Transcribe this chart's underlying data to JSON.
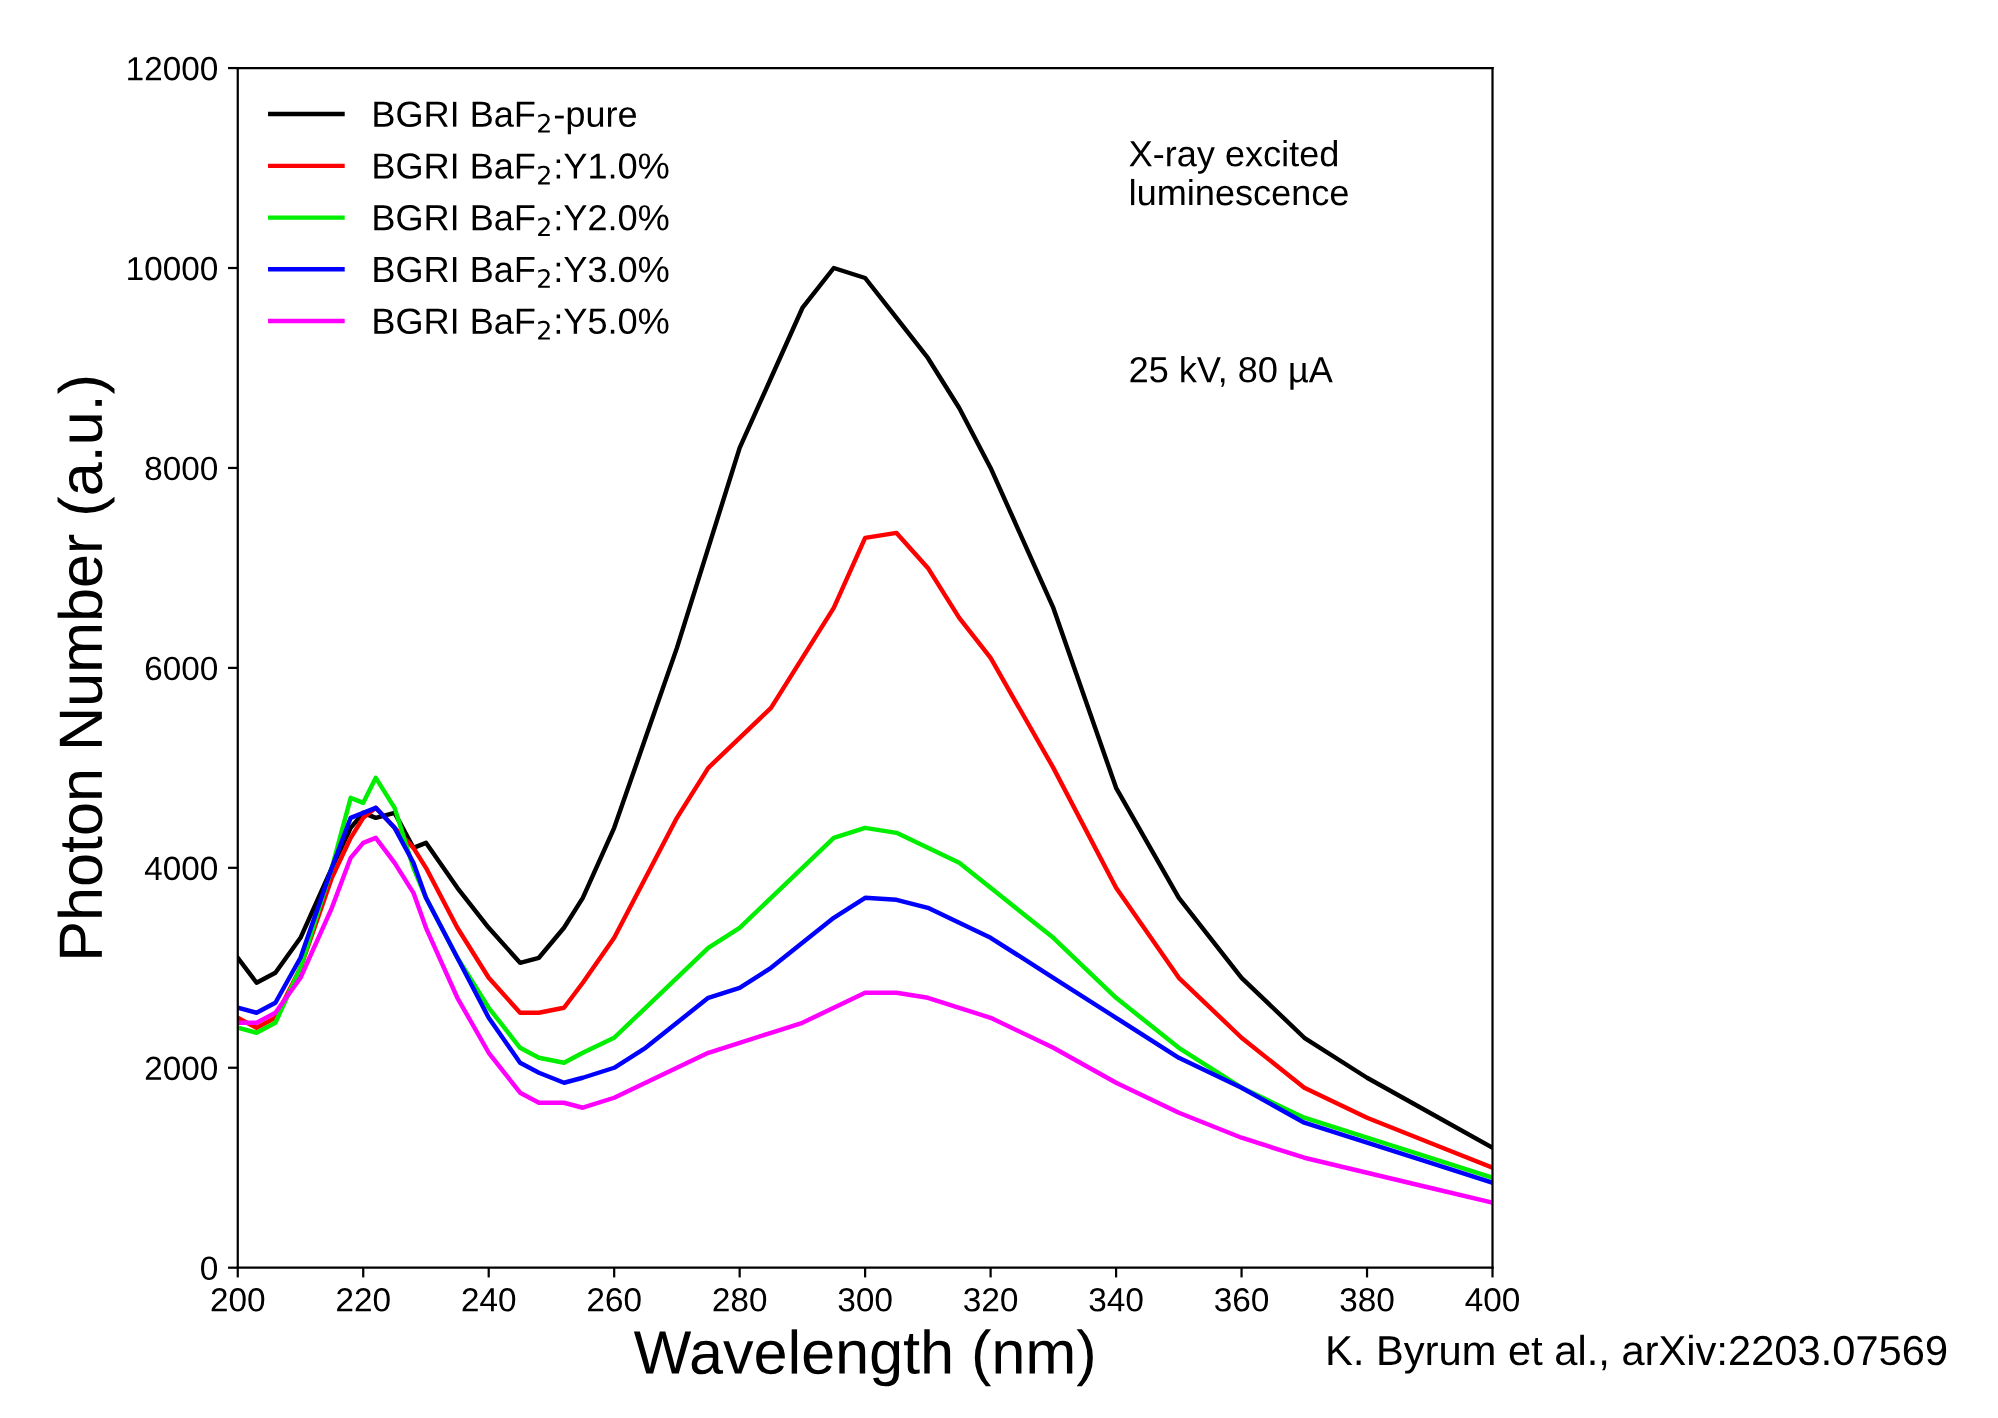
{
  "chart_data": {
    "type": "line",
    "xlabel": "Wavelength (nm)",
    "ylabel": "Photon Number (a.u.)",
    "x": [
      200,
      203,
      206,
      210,
      215,
      218,
      220,
      222,
      225,
      228,
      230,
      235,
      240,
      245,
      248,
      252,
      255,
      260,
      265,
      270,
      275,
      280,
      285,
      290,
      295,
      300,
      305,
      310,
      315,
      320,
      330,
      340,
      350,
      360,
      370,
      380,
      390,
      400
    ],
    "series": [
      {
        "name": "BGRI BaF$_{2}$-pure",
        "color": "#000000",
        "values": [
          3100,
          2850,
          2950,
          3300,
          4000,
          4400,
          4550,
          4500,
          4550,
          4200,
          4250,
          3800,
          3400,
          3050,
          3100,
          3400,
          3700,
          4400,
          5300,
          6200,
          7200,
          8200,
          8900,
          9600,
          10000,
          9900,
          9500,
          9100,
          8600,
          8000,
          6600,
          4800,
          3700,
          2900,
          2300,
          1900,
          1550,
          1200
        ]
      },
      {
        "name": "BGRI BaF$_{2}$:Y1.0%",
        "color": "#ff0000",
        "values": [
          2500,
          2400,
          2500,
          3000,
          3900,
          4300,
          4500,
          4600,
          4400,
          4200,
          4000,
          3400,
          2900,
          2550,
          2550,
          2600,
          2850,
          3300,
          3900,
          4500,
          5000,
          5300,
          5600,
          6100,
          6600,
          7300,
          7350,
          7000,
          6500,
          6100,
          5000,
          3800,
          2900,
          2300,
          1800,
          1500,
          1250,
          1000
        ]
      },
      {
        "name": "BGRI BaF$_{2}$:Y2.0%",
        "color": "#00ee00",
        "values": [
          2400,
          2350,
          2450,
          3000,
          4000,
          4700,
          4650,
          4900,
          4600,
          4000,
          3700,
          3100,
          2600,
          2200,
          2100,
          2050,
          2150,
          2300,
          2600,
          2900,
          3200,
          3400,
          3700,
          4000,
          4300,
          4400,
          4350,
          4200,
          4050,
          3800,
          3300,
          2700,
          2200,
          1800,
          1500,
          1300,
          1100,
          900
        ]
      },
      {
        "name": "BGRI BaF$_{2}$:Y3.0%",
        "color": "#0000ff",
        "values": [
          2600,
          2550,
          2650,
          3100,
          4000,
          4500,
          4550,
          4600,
          4400,
          4050,
          3700,
          3100,
          2500,
          2050,
          1950,
          1850,
          1900,
          2000,
          2200,
          2450,
          2700,
          2800,
          3000,
          3250,
          3500,
          3700,
          3680,
          3600,
          3450,
          3300,
          2900,
          2500,
          2100,
          1800,
          1450,
          1250,
          1050,
          850
        ]
      },
      {
        "name": "BGRI BaF$_{2}$:Y5.0%",
        "color": "#ff00ff",
        "values": [
          2450,
          2450,
          2550,
          2900,
          3600,
          4100,
          4250,
          4300,
          4050,
          3750,
          3400,
          2700,
          2150,
          1750,
          1650,
          1650,
          1600,
          1700,
          1850,
          2000,
          2150,
          2250,
          2350,
          2450,
          2600,
          2750,
          2750,
          2700,
          2600,
          2500,
          2200,
          1850,
          1550,
          1300,
          1100,
          950,
          800,
          650
        ]
      }
    ],
    "xlim": [
      200,
      400
    ],
    "xticks": [
      200,
      220,
      240,
      260,
      280,
      300,
      320,
      340,
      360,
      380,
      400
    ],
    "ylim": [
      0,
      12000
    ],
    "yticks": [
      0,
      2000,
      4000,
      6000,
      8000,
      10000,
      12000
    ],
    "grid": false,
    "legend": "top left",
    "marker": "none",
    "line_style": "solid",
    "annotations": [
      "X-ray excited\nluminescence",
      "25 kV, 80 µA",
      "K. Byrum et al., arXiv:2203.07569"
    ]
  }
}
